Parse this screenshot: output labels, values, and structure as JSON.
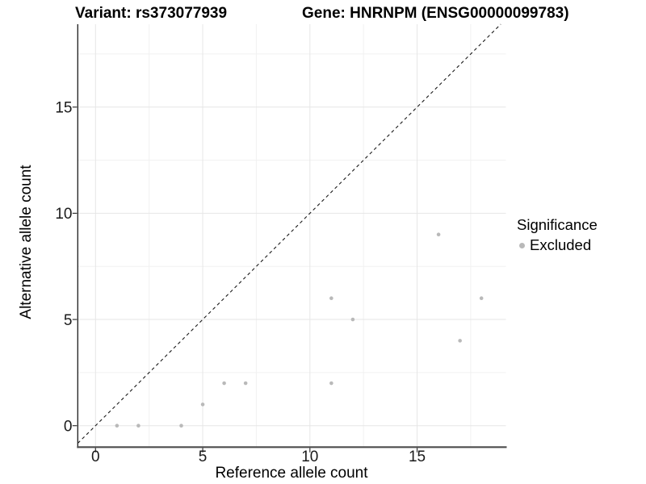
{
  "chart_data": {
    "type": "scatter",
    "title_left": "Variant: rs373077939",
    "title_right": "Gene: HNRNPM (ENSG00000099783)",
    "xlabel": "Reference allele count",
    "ylabel": "Alternative allele count",
    "x_ticks": [
      0,
      5,
      10,
      15
    ],
    "y_ticks": [
      0,
      5,
      10,
      15
    ],
    "x_minor": [
      2.5,
      7.5,
      12.5,
      17.5
    ],
    "y_minor": [
      2.5,
      7.5,
      12.5,
      17.5
    ],
    "xlim": [
      -0.82,
      19.15
    ],
    "ylim": [
      -1.0,
      18.9
    ],
    "grid": true,
    "identity_line": {
      "equation": "y = x",
      "style": "dashed",
      "color": "#1a1a1a"
    },
    "series": [
      {
        "name": "Excluded",
        "color": "#b9b9b9",
        "points": [
          [
            1,
            0
          ],
          [
            2,
            0
          ],
          [
            4,
            0
          ],
          [
            5,
            1
          ],
          [
            6,
            2
          ],
          [
            7,
            2
          ],
          [
            11,
            2
          ],
          [
            11,
            6
          ],
          [
            12,
            5
          ],
          [
            16,
            9
          ],
          [
            17,
            4
          ],
          [
            18,
            6
          ]
        ]
      }
    ],
    "legend": {
      "position": "right",
      "title": "Significance",
      "items": [
        {
          "label": "Excluded",
          "color": "#b9b9b9"
        }
      ]
    }
  },
  "colors": {
    "background": "#ffffff",
    "point_gray": "#b9b9b9",
    "grid_major": "#e6e6e6",
    "grid_minor": "#f1f1f1",
    "axis_line_left": "#1a1a1a",
    "axis_line_bottom": "#4d4d4d",
    "tick_mark": "#333333",
    "tick_label": "#1a1a1a",
    "title_text": "#000000"
  }
}
